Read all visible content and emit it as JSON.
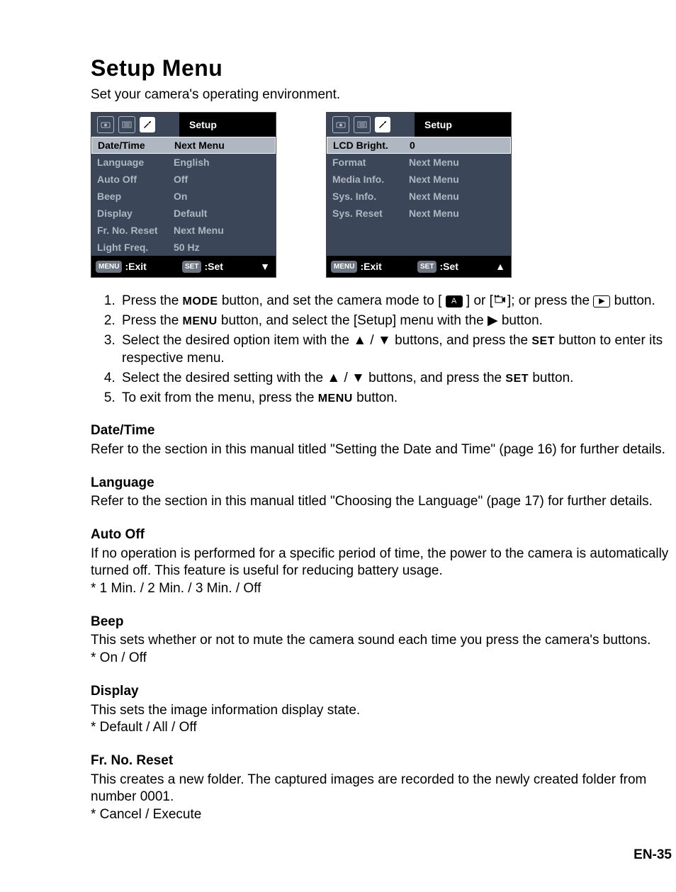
{
  "title": "Setup Menu",
  "subtitle": "Set your camera's operating environment.",
  "colors": {
    "panel_bg": "#3b4758",
    "panel_text": "#aeb7c2",
    "selected_bg": "#aeb7c2",
    "header_black": "#000000"
  },
  "screenshot1": {
    "header_label": "Setup",
    "rows": [
      {
        "label": "Date/Time",
        "value": "Next Menu",
        "selected": true
      },
      {
        "label": "Language",
        "value": "English"
      },
      {
        "label": "Auto Off",
        "value": "Off"
      },
      {
        "label": "Beep",
        "value": "On"
      },
      {
        "label": "Display",
        "value": "Default"
      },
      {
        "label": "Fr. No. Reset",
        "value": "Next Menu"
      },
      {
        "label": "Light Freq.",
        "value": "50 Hz"
      }
    ],
    "footer": {
      "menu": "MENU",
      "exit": ":Exit",
      "set": "SET",
      "setlabel": ":Set",
      "arrow": "▼"
    }
  },
  "screenshot2": {
    "header_label": "Setup",
    "rows": [
      {
        "label": "LCD Bright.",
        "value": "0",
        "selected": true
      },
      {
        "label": "Format",
        "value": "Next Menu"
      },
      {
        "label": "Media Info.",
        "value": "Next Menu"
      },
      {
        "label": "Sys. Info.",
        "value": "Next Menu"
      },
      {
        "label": "Sys. Reset",
        "value": "Next Menu"
      },
      {
        "label": "",
        "value": "",
        "empty": true
      },
      {
        "label": "",
        "value": "",
        "empty": true
      }
    ],
    "footer": {
      "menu": "MENU",
      "exit": ":Exit",
      "set": "SET",
      "setlabel": ":Set",
      "arrow": "▲"
    }
  },
  "steps": [
    {
      "pre": "Press the ",
      "a": "MODE",
      "mid": " button, and set the camera mode to [ ",
      "iconA": "A",
      "mid2": " ] or [",
      "iconV": "▶",
      "mid3": "]; or press the ",
      "iconP": "▶",
      "post": " button."
    },
    {
      "pre": "Press the ",
      "a": "MENU",
      "mid": " button, and select the [Setup] menu with the ▶ button."
    },
    {
      "pre": "Select the desired option item with the ▲ / ▼ buttons, and press the ",
      "a": "SET",
      "mid": " button to enter its respective menu."
    },
    {
      "pre": "Select the desired setting with the ▲ / ▼ buttons, and press the ",
      "a": "SET",
      "mid": " button."
    },
    {
      "pre": "To exit from the menu, press the ",
      "a": "MENU",
      "mid": " button."
    }
  ],
  "sections": [
    {
      "head": "Date/Time",
      "body": "Refer to the section in this manual titled \"Setting the Date and Time\" (page 16) for further details."
    },
    {
      "head": "Language",
      "body": "Refer to the section in this manual titled \"Choosing the Language\" (page 17) for further details."
    },
    {
      "head": "Auto Off",
      "body": "If no operation is performed for a specific period of time, the power to the camera is automatically turned off. This feature is useful for reducing battery usage.",
      "opts": "* 1 Min. / 2 Min. / 3 Min. / Off"
    },
    {
      "head": "Beep",
      "body": "This sets whether or not to mute the camera sound each time you press the camera's buttons.",
      "opts": "* On / Off"
    },
    {
      "head": "Display",
      "body": "This sets the image information display state.",
      "opts": "* Default / All / Off"
    },
    {
      "head": "Fr. No. Reset",
      "body": "This creates a new folder. The captured images are recorded to the newly created folder from number 0001.",
      "opts": "* Cancel / Execute"
    }
  ],
  "page_number": "EN-35"
}
